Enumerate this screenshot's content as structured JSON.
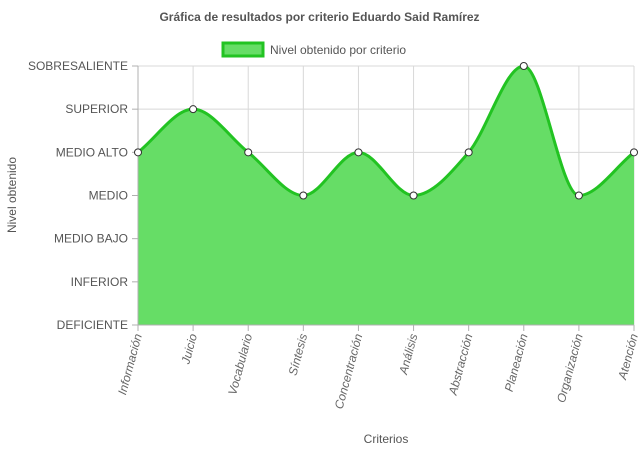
{
  "chart_data": {
    "type": "area",
    "title": "Gráfica de resultados por criterio Eduardo Said Ramírez",
    "xlabel": "Criterios",
    "ylabel": "Nivel obtenido",
    "categories": [
      "Información",
      "Juicio",
      "Vocabulario",
      "Síntesis",
      "Concentración",
      "Análisis",
      "Abstracción",
      "Planeación",
      "Organización",
      "Atención"
    ],
    "y_levels": [
      "DEFICIENTE",
      "INFERIOR",
      "MEDIO BAJO",
      "MEDIO",
      "MEDIO ALTO",
      "SUPERIOR",
      "SOBRESALIENTE"
    ],
    "ylim": [
      0,
      6
    ],
    "grid": true,
    "legend_position": "top",
    "series": [
      {
        "name": "Nivel obtenido por criterio",
        "values": [
          4,
          5,
          4,
          3,
          4,
          3,
          4,
          6,
          3,
          4
        ],
        "color": "#22c322",
        "fill": "#66dd66"
      }
    ]
  }
}
